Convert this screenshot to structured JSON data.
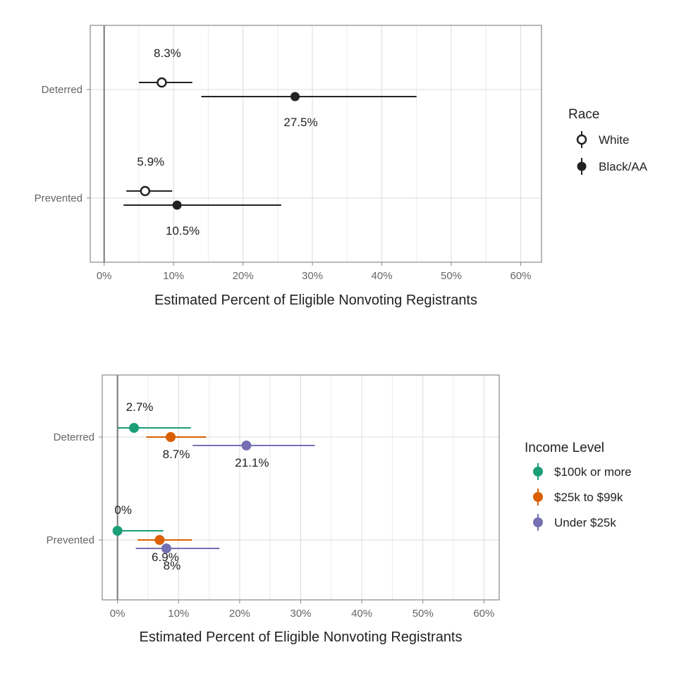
{
  "chart_data": [
    {
      "type": "dot-errorbar",
      "categories": [
        "Deterred",
        "Prevented"
      ],
      "xlabel": "Estimated Percent of Eligible Nonvoting Registrants",
      "xlim": [
        -2,
        63
      ],
      "x_ticks": [
        0,
        10,
        20,
        30,
        40,
        50,
        60
      ],
      "x_tick_labels": [
        "0%",
        "10%",
        "20%",
        "30%",
        "40%",
        "50%",
        "60%"
      ],
      "grid": true,
      "legend": {
        "title": "Race",
        "position": "right",
        "entries": [
          {
            "name": "White",
            "marker": "open-circle"
          },
          {
            "name": "Black/AA",
            "marker": "filled-circle"
          }
        ]
      },
      "series": [
        {
          "name": "White",
          "color": "#222222",
          "fill": "#ffffff",
          "points": [
            {
              "category": "Deterred",
              "value": 8.3,
              "low": 5.0,
              "high": 12.7,
              "label": "8.3%",
              "label_pos": "above"
            },
            {
              "category": "Prevented",
              "value": 5.9,
              "low": 3.2,
              "high": 9.8,
              "label": "5.9%",
              "label_pos": "above"
            }
          ]
        },
        {
          "name": "Black/AA",
          "color": "#222222",
          "fill": "#222222",
          "points": [
            {
              "category": "Deterred",
              "value": 27.5,
              "low": 14.0,
              "high": 45.0,
              "label": "27.5%",
              "label_pos": "below"
            },
            {
              "category": "Prevented",
              "value": 10.5,
              "low": 2.8,
              "high": 25.5,
              "label": "10.5%",
              "label_pos": "below"
            }
          ]
        }
      ]
    },
    {
      "type": "dot-errorbar",
      "categories": [
        "Deterred",
        "Prevented"
      ],
      "xlabel": "Estimated Percent of Eligible Nonvoting Registrants",
      "xlim": [
        -2.5,
        62.5
      ],
      "x_ticks": [
        0,
        10,
        20,
        30,
        40,
        50,
        60
      ],
      "x_tick_labels": [
        "0%",
        "10%",
        "20%",
        "30%",
        "40%",
        "50%",
        "60%"
      ],
      "grid": true,
      "legend": {
        "title": "Income Level",
        "position": "right",
        "entries": [
          {
            "name": "$100k or more",
            "color": "#1b9e77"
          },
          {
            "name": "$25k to $99k",
            "color": "#d95f02"
          },
          {
            "name": "Under $25k",
            "color": "#7570b3"
          }
        ]
      },
      "series": [
        {
          "name": "$100k or more",
          "color": "#1b9e77",
          "points": [
            {
              "category": "Deterred",
              "value": 2.7,
              "low": 0.0,
              "high": 12.0,
              "label": "2.7%",
              "label_pos": "above"
            },
            {
              "category": "Prevented",
              "value": 0.0,
              "low": 0.0,
              "high": 7.5,
              "label": "0%",
              "label_pos": "above"
            }
          ]
        },
        {
          "name": "$25k to $99k",
          "color": "#d95f02",
          "points": [
            {
              "category": "Deterred",
              "value": 8.7,
              "low": 4.7,
              "high": 14.5,
              "label": "8.7%",
              "label_pos": "below"
            },
            {
              "category": "Prevented",
              "value": 6.9,
              "low": 3.3,
              "high": 12.2,
              "label": "6.9%",
              "label_pos": "below"
            }
          ]
        },
        {
          "name": "Under $25k",
          "color": "#7570b3",
          "points": [
            {
              "category": "Deterred",
              "value": 21.1,
              "low": 12.3,
              "high": 32.3,
              "label": "21.1%",
              "label_pos": "below"
            },
            {
              "category": "Prevented",
              "value": 8.0,
              "low": 3.0,
              "high": 16.7,
              "label": "8%",
              "label_pos": "below"
            }
          ]
        }
      ]
    }
  ]
}
